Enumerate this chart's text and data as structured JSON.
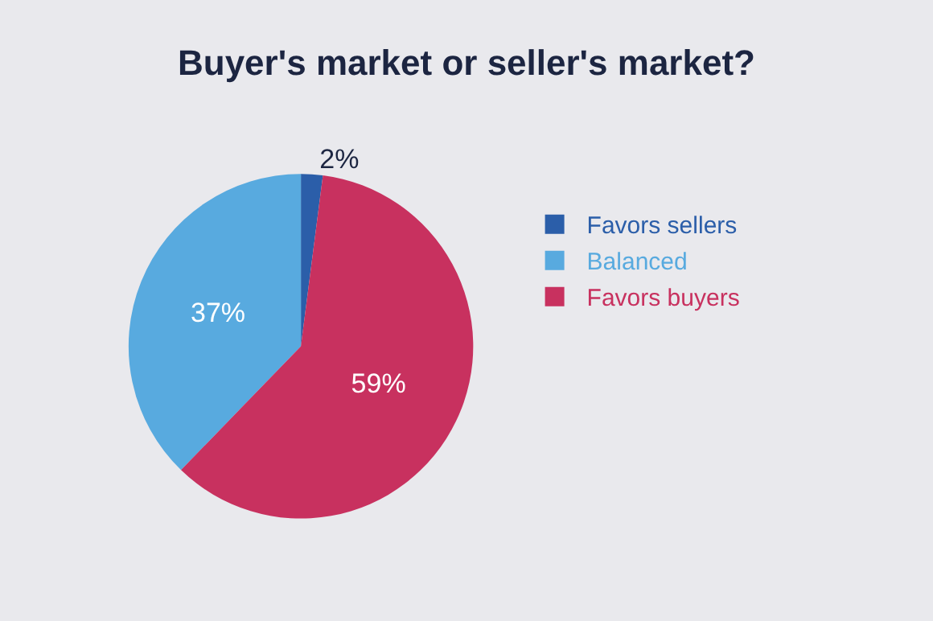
{
  "chart_data": {
    "type": "pie",
    "title": "Buyer's market or seller's market?",
    "categories": [
      "Favors sellers",
      "Balanced",
      "Favors buyers"
    ],
    "values": [
      2,
      37,
      59
    ],
    "colors": [
      "#2b5ea9",
      "#58aadf",
      "#c8315f"
    ],
    "value_labels": [
      "2%",
      "37%",
      "59%"
    ],
    "legend": "right"
  }
}
